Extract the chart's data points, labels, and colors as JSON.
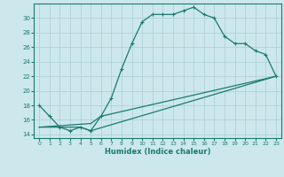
{
  "xlabel": "Humidex (Indice chaleur)",
  "background_color": "#cce8ec",
  "grid_color": "#aacdd4",
  "line_color": "#1a7a6e",
  "xlim": [
    -0.5,
    23.5
  ],
  "ylim": [
    13.5,
    32
  ],
  "yticks": [
    14,
    16,
    18,
    20,
    22,
    24,
    26,
    28,
    30
  ],
  "xticks": [
    0,
    1,
    2,
    3,
    4,
    5,
    6,
    7,
    8,
    9,
    10,
    11,
    12,
    13,
    14,
    15,
    16,
    17,
    18,
    19,
    20,
    21,
    22,
    23
  ],
  "line1_x": [
    0,
    1,
    2,
    3,
    4,
    5,
    6,
    7,
    8,
    9,
    10,
    11,
    12,
    13,
    14,
    15,
    16,
    17,
    18,
    19,
    20,
    21,
    22,
    23
  ],
  "line1_y": [
    18,
    16.5,
    15,
    14.5,
    15,
    14.5,
    16.5,
    19,
    23,
    26.5,
    29.5,
    30.5,
    30.5,
    30.5,
    31,
    31.5,
    30.5,
    30,
    27.5,
    26.5,
    26.5,
    25.5,
    25,
    22
  ],
  "line2_x": [
    0,
    4,
    5,
    23
  ],
  "line2_y": [
    15,
    15,
    14.5,
    22
  ],
  "line3_x": [
    0,
    5,
    6,
    23
  ],
  "line3_y": [
    15,
    15.5,
    16.5,
    22
  ]
}
